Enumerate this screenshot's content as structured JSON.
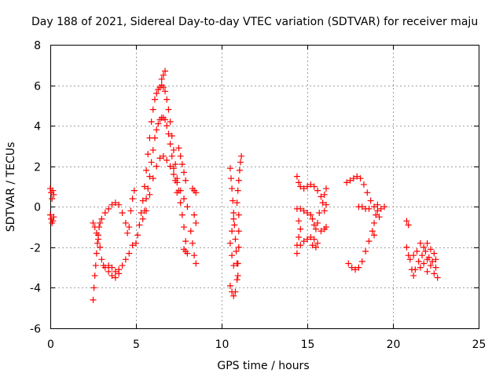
{
  "chart_data": {
    "type": "scatter",
    "title": "Day 188 of 2021, Sidereal Day-to-day VTEC variation (SDTVAR) for receiver maju",
    "xlabel": "GPS time / hours",
    "ylabel": "SDTVAR / TECUs",
    "xlim": [
      0,
      25
    ],
    "ylim": [
      -6,
      8
    ],
    "xticks": [
      "0",
      "5",
      "10",
      "15",
      "20",
      "25"
    ],
    "yticks": [
      "-6",
      "-4",
      "-2",
      "0",
      "2",
      "4",
      "6",
      "8"
    ],
    "grid": true,
    "marker": "plus",
    "color": "#ff0000",
    "series": [
      {
        "points": [
          [
            0.0,
            0.9
          ],
          [
            0.05,
            0.7
          ],
          [
            0.1,
            0.4
          ],
          [
            0.15,
            0.8
          ],
          [
            0.2,
            0.6
          ],
          [
            0.0,
            -0.4
          ],
          [
            0.05,
            -0.6
          ],
          [
            0.1,
            -0.8
          ],
          [
            0.15,
            -0.7
          ],
          [
            0.2,
            -0.5
          ]
        ]
      },
      {
        "points": [
          [
            2.5,
            -4.6
          ],
          [
            2.55,
            -4.0
          ],
          [
            2.6,
            -3.4
          ],
          [
            2.65,
            -2.9
          ],
          [
            2.7,
            -2.3
          ],
          [
            2.75,
            -1.8
          ],
          [
            2.8,
            -1.4
          ],
          [
            2.85,
            -1.0
          ],
          [
            2.9,
            -0.8
          ],
          [
            2.5,
            -0.8
          ],
          [
            2.6,
            -1.0
          ],
          [
            2.7,
            -1.3
          ],
          [
            2.8,
            -1.6
          ],
          [
            2.9,
            -2.0
          ],
          [
            3.0,
            -2.6
          ],
          [
            3.1,
            -2.9
          ],
          [
            3.2,
            -3.0
          ],
          [
            3.4,
            -2.9
          ],
          [
            3.6,
            -3.0
          ],
          [
            3.8,
            -3.2
          ],
          [
            4.0,
            -3.1
          ],
          [
            4.2,
            -2.9
          ],
          [
            4.4,
            -2.6
          ],
          [
            4.6,
            -2.3
          ],
          [
            4.8,
            -1.9
          ],
          [
            3.0,
            -0.6
          ],
          [
            3.2,
            -0.3
          ],
          [
            3.4,
            -0.1
          ],
          [
            3.6,
            0.1
          ],
          [
            3.8,
            0.2
          ],
          [
            4.0,
            0.1
          ],
          [
            4.2,
            -0.3
          ],
          [
            4.4,
            -0.8
          ],
          [
            4.5,
            -1.3
          ],
          [
            4.6,
            -1.0
          ],
          [
            4.7,
            -0.2
          ],
          [
            4.8,
            0.4
          ],
          [
            4.9,
            0.8
          ],
          [
            3.4,
            -3.2
          ],
          [
            3.6,
            -3.4
          ],
          [
            3.8,
            -3.5
          ],
          [
            4.0,
            -3.3
          ]
        ]
      },
      {
        "points": [
          [
            5.0,
            -1.8
          ],
          [
            5.1,
            -1.4
          ],
          [
            5.2,
            -0.9
          ],
          [
            5.3,
            -0.3
          ],
          [
            5.4,
            0.3
          ],
          [
            5.5,
            1.0
          ],
          [
            5.6,
            1.8
          ],
          [
            5.7,
            2.6
          ],
          [
            5.8,
            3.4
          ],
          [
            5.9,
            4.2
          ],
          [
            6.0,
            4.8
          ],
          [
            6.1,
            5.3
          ],
          [
            6.2,
            5.6
          ],
          [
            6.3,
            5.8
          ],
          [
            6.4,
            5.9
          ],
          [
            6.5,
            6.0
          ],
          [
            6.6,
            5.9
          ],
          [
            6.7,
            5.7
          ],
          [
            6.8,
            5.3
          ],
          [
            6.9,
            4.8
          ],
          [
            7.0,
            4.2
          ],
          [
            7.1,
            3.5
          ],
          [
            7.2,
            2.8
          ],
          [
            7.3,
            2.1
          ],
          [
            7.4,
            1.4
          ],
          [
            7.5,
            0.8
          ],
          [
            7.6,
            0.2
          ],
          [
            7.7,
            -0.4
          ],
          [
            7.8,
            -1.0
          ],
          [
            7.9,
            -1.7
          ],
          [
            8.0,
            -2.3
          ],
          [
            6.5,
            6.3
          ],
          [
            6.6,
            6.5
          ],
          [
            6.7,
            6.7
          ],
          [
            5.4,
            -0.6
          ],
          [
            5.5,
            -0.2
          ],
          [
            5.6,
            0.4
          ],
          [
            5.7,
            0.9
          ],
          [
            5.8,
            1.5
          ],
          [
            5.9,
            2.2
          ],
          [
            6.0,
            2.8
          ],
          [
            6.1,
            3.4
          ],
          [
            6.2,
            3.8
          ],
          [
            6.3,
            4.1
          ],
          [
            6.4,
            4.3
          ],
          [
            6.5,
            4.4
          ],
          [
            6.6,
            4.4
          ],
          [
            6.7,
            4.3
          ],
          [
            6.8,
            4.0
          ],
          [
            6.9,
            3.6
          ],
          [
            7.0,
            3.1
          ],
          [
            7.1,
            2.5
          ],
          [
            7.2,
            1.9
          ],
          [
            7.3,
            1.3
          ],
          [
            7.4,
            0.7
          ],
          [
            5.6,
            -0.2
          ],
          [
            5.8,
            0.6
          ],
          [
            6.0,
            1.4
          ],
          [
            6.2,
            2.0
          ],
          [
            6.4,
            2.4
          ],
          [
            6.6,
            2.5
          ],
          [
            6.8,
            2.3
          ],
          [
            7.0,
            2.0
          ],
          [
            7.2,
            1.6
          ],
          [
            7.4,
            1.2
          ],
          [
            7.6,
            0.8
          ],
          [
            7.8,
            0.4
          ],
          [
            8.0,
            0.0
          ],
          [
            7.5,
            2.9
          ],
          [
            7.6,
            2.5
          ],
          [
            7.7,
            2.1
          ],
          [
            7.8,
            1.7
          ],
          [
            7.9,
            1.3
          ],
          [
            7.8,
            -2.1
          ],
          [
            7.9,
            -2.2
          ],
          [
            8.2,
            -1.2
          ],
          [
            8.3,
            -1.8
          ],
          [
            8.4,
            -2.4
          ],
          [
            8.5,
            -2.8
          ],
          [
            8.3,
            0.9
          ],
          [
            8.4,
            0.8
          ],
          [
            8.5,
            0.7
          ],
          [
            8.4,
            -0.4
          ],
          [
            8.5,
            -0.8
          ]
        ]
      },
      {
        "points": [
          [
            10.5,
            1.9
          ],
          [
            10.55,
            1.4
          ],
          [
            10.6,
            0.9
          ],
          [
            10.65,
            0.3
          ],
          [
            10.7,
            -0.3
          ],
          [
            10.75,
            -0.9
          ],
          [
            10.8,
            -1.6
          ],
          [
            10.85,
            -2.2
          ],
          [
            10.9,
            -2.8
          ],
          [
            10.95,
            -3.4
          ],
          [
            10.5,
            -3.9
          ],
          [
            10.6,
            -4.2
          ],
          [
            10.7,
            -4.4
          ],
          [
            10.8,
            -4.2
          ],
          [
            10.9,
            -3.6
          ],
          [
            10.95,
            -2.8
          ],
          [
            11.0,
            -2.0
          ],
          [
            11.0,
            -1.2
          ],
          [
            11.0,
            -0.4
          ],
          [
            10.9,
            0.2
          ],
          [
            10.95,
            0.8
          ],
          [
            11.0,
            1.3
          ],
          [
            11.05,
            1.8
          ],
          [
            11.1,
            2.2
          ],
          [
            11.15,
            2.5
          ],
          [
            10.5,
            -1.8
          ],
          [
            10.6,
            -1.2
          ],
          [
            10.7,
            -0.6
          ],
          [
            10.6,
            -2.4
          ],
          [
            10.7,
            -2.9
          ]
        ]
      },
      {
        "points": [
          [
            14.4,
            1.5
          ],
          [
            14.5,
            1.2
          ],
          [
            14.6,
            1.0
          ],
          [
            14.8,
            0.9
          ],
          [
            15.0,
            1.0
          ],
          [
            15.2,
            1.1
          ],
          [
            15.4,
            1.0
          ],
          [
            15.6,
            0.8
          ],
          [
            15.8,
            0.5
          ],
          [
            15.9,
            0.2
          ],
          [
            16.0,
            0.6
          ],
          [
            16.1,
            0.9
          ],
          [
            15.7,
            -0.3
          ],
          [
            15.6,
            -0.8
          ],
          [
            15.5,
            -1.1
          ],
          [
            15.4,
            -0.9
          ],
          [
            15.3,
            -0.6
          ],
          [
            15.2,
            -0.4
          ],
          [
            15.0,
            -0.3
          ],
          [
            14.8,
            -0.2
          ],
          [
            14.6,
            -0.1
          ],
          [
            14.4,
            -0.1
          ],
          [
            14.5,
            -0.7
          ],
          [
            14.6,
            -1.1
          ],
          [
            14.5,
            -1.5
          ],
          [
            14.4,
            -1.9
          ],
          [
            14.4,
            -2.3
          ],
          [
            14.6,
            -1.9
          ],
          [
            14.8,
            -1.7
          ],
          [
            15.0,
            -1.6
          ],
          [
            15.2,
            -1.5
          ],
          [
            15.4,
            -1.6
          ],
          [
            15.6,
            -1.8
          ],
          [
            15.8,
            -1.2
          ],
          [
            16.0,
            -1.1
          ],
          [
            16.1,
            -1.0
          ],
          [
            15.3,
            -1.9
          ],
          [
            15.5,
            -2.0
          ],
          [
            16.0,
            -0.2
          ],
          [
            16.1,
            0.1
          ]
        ]
      },
      {
        "points": [
          [
            17.3,
            1.2
          ],
          [
            17.5,
            1.3
          ],
          [
            17.7,
            1.4
          ],
          [
            17.9,
            1.5
          ],
          [
            18.1,
            1.4
          ],
          [
            18.3,
            1.1
          ],
          [
            18.5,
            0.7
          ],
          [
            18.7,
            0.3
          ],
          [
            18.9,
            0.0
          ],
          [
            19.1,
            -0.2
          ],
          [
            19.3,
            -0.1
          ],
          [
            19.5,
            0.0
          ],
          [
            17.4,
            -2.8
          ],
          [
            17.6,
            -3.0
          ],
          [
            17.8,
            -3.1
          ],
          [
            18.0,
            -3.0
          ],
          [
            18.2,
            -2.7
          ],
          [
            18.4,
            -2.2
          ],
          [
            18.6,
            -1.7
          ],
          [
            18.8,
            -1.2
          ],
          [
            18.9,
            -0.8
          ],
          [
            19.0,
            -0.4
          ],
          [
            19.1,
            0.1
          ],
          [
            18.6,
            -0.1
          ],
          [
            18.4,
            -0.1
          ],
          [
            18.2,
            0.0
          ],
          [
            18.0,
            0.0
          ],
          [
            19.2,
            -0.5
          ],
          [
            18.9,
            -1.4
          ]
        ]
      },
      {
        "points": [
          [
            20.8,
            -0.7
          ],
          [
            20.9,
            -0.9
          ],
          [
            20.8,
            -2.0
          ],
          [
            20.9,
            -2.4
          ],
          [
            21.0,
            -2.6
          ],
          [
            21.1,
            -3.1
          ],
          [
            21.2,
            -3.4
          ],
          [
            21.3,
            -3.1
          ],
          [
            21.5,
            -2.7
          ],
          [
            21.7,
            -2.4
          ],
          [
            21.9,
            -2.2
          ],
          [
            22.1,
            -2.5
          ],
          [
            22.3,
            -2.7
          ],
          [
            22.5,
            -3.0
          ],
          [
            22.6,
            -3.5
          ],
          [
            21.4,
            -2.2
          ],
          [
            21.6,
            -1.8
          ],
          [
            21.8,
            -2.0
          ],
          [
            22.0,
            -1.8
          ],
          [
            22.2,
            -2.1
          ],
          [
            22.4,
            -2.3
          ],
          [
            22.5,
            -2.6
          ],
          [
            21.2,
            -2.4
          ],
          [
            21.6,
            -3.0
          ],
          [
            21.8,
            -2.8
          ],
          [
            22.0,
            -3.2
          ],
          [
            22.2,
            -2.9
          ],
          [
            22.4,
            -3.3
          ],
          [
            22.0,
            -2.6
          ]
        ]
      }
    ]
  }
}
